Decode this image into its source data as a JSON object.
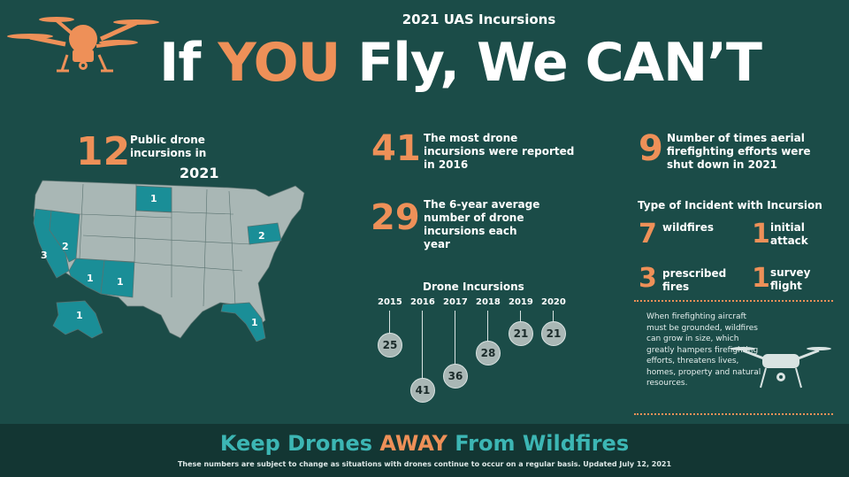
{
  "header": {
    "subtitle": "2021 UAS Incursions",
    "headline": {
      "part1": "If ",
      "emph": "YOU",
      "part2": " Fly, We CAN’T"
    }
  },
  "stats": {
    "public_2021": {
      "number": "12",
      "text": "Public drone incursions in",
      "year": "2021"
    },
    "most": {
      "number": "41",
      "text": "The most drone incursions were reported in 2016"
    },
    "average": {
      "number": "29",
      "text": "The 6-year average number of drone incursions each year"
    },
    "shutdown": {
      "number": "9",
      "text": "Number of times aerial firefighting efforts were shut down in 2021"
    }
  },
  "incident_types": {
    "title": "Type of Incident with Incursion",
    "items": [
      {
        "number": "7",
        "label": "wildfires"
      },
      {
        "number": "1",
        "label": "initial attack"
      },
      {
        "number": "3",
        "label": "prescribed fires"
      },
      {
        "number": "1",
        "label": "survey flight"
      }
    ]
  },
  "warning_text": "When firefighting aircraft must be grounded, wildfires can grow in size, which greatly hampers firefighting efforts, threatens lives, homes, property and natural resources.",
  "map": {
    "state_counts": [
      {
        "state": "California",
        "count": "3"
      },
      {
        "state": "Nevada",
        "count": "2"
      },
      {
        "state": "Arizona",
        "count": "1"
      },
      {
        "state": "New Mexico",
        "count": "1"
      },
      {
        "state": "North Dakota",
        "count": "1"
      },
      {
        "state": "Pennsylvania",
        "count": "2"
      },
      {
        "state": "Florida",
        "count": "1"
      },
      {
        "state": "Alaska",
        "count": "1"
      }
    ],
    "highlight_color": "#1a8e97",
    "base_color": "#a9b7b5"
  },
  "chart_data": {
    "type": "lollipop",
    "title": "Drone Incursions",
    "categories": [
      "2015",
      "2016",
      "2017",
      "2018",
      "2019",
      "2020"
    ],
    "values": [
      25,
      41,
      36,
      28,
      21,
      21
    ]
  },
  "footer": {
    "title": {
      "part1": "Keep Drones ",
      "emph": "AWAY",
      "part2": " From Wildfires"
    },
    "note": "These numbers are subject to change as situations with drones continue to occur on a regular basis. Updated July 12, 2021"
  },
  "colors": {
    "background": "#1b4c48",
    "accent": "#ee9058",
    "teal": "#3cb6b4",
    "footer": "#133633"
  },
  "icons": [
    "drone-icon-orange",
    "drone-icon-white"
  ]
}
